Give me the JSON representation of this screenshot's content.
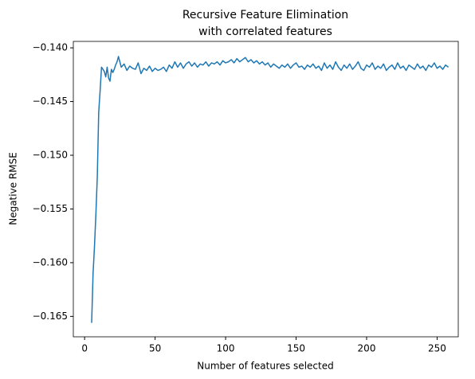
{
  "chart_data": {
    "type": "line",
    "title": [
      "Recursive Feature Elimination",
      "with correlated features"
    ],
    "xlabel": "Number of features selected",
    "ylabel": "Negative RMSE",
    "color": "#1f77b4",
    "x": [
      5,
      6,
      7,
      8,
      9,
      10,
      11,
      12,
      13,
      14,
      15,
      16,
      17,
      18,
      19,
      20,
      21,
      22,
      23,
      24,
      26,
      28,
      30,
      32,
      34,
      36,
      38,
      40,
      42,
      44,
      46,
      48,
      50,
      52,
      54,
      56,
      58,
      60,
      62,
      64,
      66,
      68,
      70,
      72,
      74,
      76,
      78,
      80,
      82,
      84,
      86,
      88,
      90,
      92,
      94,
      96,
      98,
      100,
      102,
      104,
      106,
      108,
      110,
      112,
      114,
      116,
      118,
      120,
      122,
      124,
      126,
      128,
      130,
      132,
      134,
      136,
      138,
      140,
      142,
      144,
      146,
      148,
      150,
      152,
      154,
      156,
      158,
      160,
      162,
      164,
      166,
      168,
      170,
      172,
      174,
      176,
      178,
      180,
      182,
      184,
      186,
      188,
      190,
      192,
      194,
      196,
      198,
      200,
      202,
      204,
      206,
      208,
      210,
      212,
      214,
      216,
      218,
      220,
      222,
      224,
      226,
      228,
      230,
      232,
      234,
      236,
      238,
      240,
      242,
      244,
      246,
      248,
      250,
      252,
      254,
      256,
      258
    ],
    "values": [
      -0.1656,
      -0.161,
      -0.1585,
      -0.1555,
      -0.152,
      -0.146,
      -0.144,
      -0.1418,
      -0.142,
      -0.1422,
      -0.1427,
      -0.1418,
      -0.1428,
      -0.1431,
      -0.142,
      -0.1423,
      -0.142,
      -0.1416,
      -0.1413,
      -0.1408,
      -0.1418,
      -0.1415,
      -0.1421,
      -0.1417,
      -0.1419,
      -0.142,
      -0.1414,
      -0.1424,
      -0.1419,
      -0.1421,
      -0.1417,
      -0.1422,
      -0.1419,
      -0.1421,
      -0.142,
      -0.1418,
      -0.1422,
      -0.1416,
      -0.1419,
      -0.1413,
      -0.1418,
      -0.1414,
      -0.1419,
      -0.1415,
      -0.1413,
      -0.1417,
      -0.1414,
      -0.1418,
      -0.1415,
      -0.1416,
      -0.1413,
      -0.1417,
      -0.1414,
      -0.1415,
      -0.1413,
      -0.1416,
      -0.1412,
      -0.1414,
      -0.1413,
      -0.1411,
      -0.1414,
      -0.141,
      -0.1413,
      -0.1411,
      -0.1409,
      -0.1413,
      -0.1411,
      -0.1414,
      -0.1412,
      -0.1415,
      -0.1413,
      -0.1416,
      -0.1414,
      -0.1418,
      -0.1415,
      -0.1417,
      -0.1419,
      -0.1416,
      -0.1418,
      -0.1415,
      -0.1419,
      -0.1416,
      -0.1414,
      -0.1418,
      -0.1417,
      -0.142,
      -0.1416,
      -0.1418,
      -0.1415,
      -0.1419,
      -0.1417,
      -0.1421,
      -0.1414,
      -0.1419,
      -0.1416,
      -0.142,
      -0.1413,
      -0.1418,
      -0.1421,
      -0.1416,
      -0.1419,
      -0.1415,
      -0.142,
      -0.1417,
      -0.1413,
      -0.1419,
      -0.1421,
      -0.1416,
      -0.1418,
      -0.1414,
      -0.142,
      -0.1417,
      -0.1419,
      -0.1415,
      -0.1421,
      -0.1418,
      -0.1416,
      -0.142,
      -0.1414,
      -0.1419,
      -0.1417,
      -0.1421,
      -0.1416,
      -0.1418,
      -0.142,
      -0.1415,
      -0.1419,
      -0.1417,
      -0.1421,
      -0.1416,
      -0.1418,
      -0.1414,
      -0.1419,
      -0.1417,
      -0.142,
      -0.1416,
      -0.1418
    ],
    "xlim": [
      -8,
      265
    ],
    "xticks": [
      0,
      50,
      100,
      150,
      200,
      250
    ],
    "ylim": [
      -0.1669,
      -0.1394
    ],
    "yticks": [
      {
        "value": -0.14,
        "label": "−0.140"
      },
      {
        "value": -0.145,
        "label": "−0.145"
      },
      {
        "value": -0.15,
        "label": "−0.150"
      },
      {
        "value": -0.155,
        "label": "−0.155"
      },
      {
        "value": -0.16,
        "label": "−0.160"
      },
      {
        "value": -0.165,
        "label": "−0.165"
      }
    ]
  }
}
